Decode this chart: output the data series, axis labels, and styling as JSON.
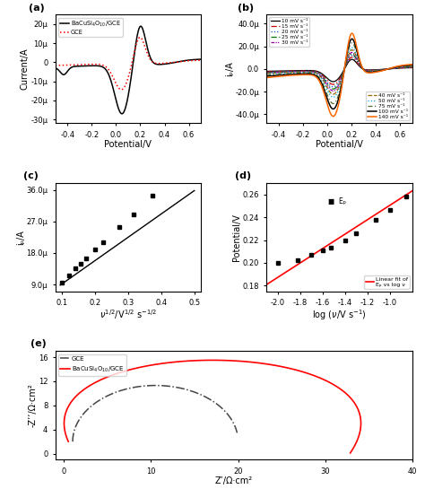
{
  "panel_a": {
    "xlabel": "Potential/V",
    "ylabel": "Current/A",
    "xlim": [
      -0.5,
      0.7
    ],
    "ylim": [
      -3.2e-05,
      2.5e-05
    ],
    "yticks": [
      -3e-05,
      -2e-05,
      -1e-05,
      0,
      1e-05,
      2e-05
    ],
    "ytick_labels": [
      "-30μ",
      "-20μ",
      "-10μ",
      "0",
      "10μ",
      "20μ"
    ],
    "xticks": [
      -0.4,
      -0.2,
      0.0,
      0.2,
      0.4,
      0.6
    ]
  },
  "panel_b": {
    "xlabel": "Potential/V",
    "ylabel": "iₚ/A",
    "xlim": [
      -0.5,
      0.7
    ],
    "ylim": [
      -4.8e-05,
      4.8e-05
    ],
    "yticks": [
      -4e-05,
      -2e-05,
      0,
      2e-05,
      4e-05
    ],
    "ytick_labels": [
      "-40.0μ",
      "-20.0μ",
      "0.0",
      "20.0μ",
      "40.0μ"
    ],
    "xticks": [
      -0.4,
      -0.2,
      0.0,
      0.2,
      0.4,
      0.6
    ]
  },
  "panel_c": {
    "xlabel": "v¹ⁿ²/V¹ⁿ² s⁻¹ⁿ²",
    "ylabel": "iₚ/A",
    "xlim": [
      0.08,
      0.52
    ],
    "ylim": [
      7e-06,
      3.8e-05
    ],
    "xticks": [
      0.1,
      0.2,
      0.3,
      0.4,
      0.5
    ],
    "yticks": [
      9e-06,
      1.8e-05,
      2.7e-05,
      3.6e-05
    ],
    "ytick_labels": [
      "9.0μ",
      "18.0μ",
      "27.0μ",
      "36.0μ"
    ],
    "x_data": [
      0.1,
      0.1225,
      0.1414,
      0.158,
      0.1732,
      0.2,
      0.2236,
      0.2739,
      0.3162,
      0.3742
    ],
    "y_data": [
      9.5e-06,
      1.15e-05,
      1.35e-05,
      1.5e-05,
      1.65e-05,
      1.9e-05,
      2.1e-05,
      2.55e-05,
      2.9e-05,
      3.45e-05
    ],
    "fit_x": [
      0.095,
      0.5
    ],
    "fit_y": [
      8.8e-06,
      3.58e-05
    ]
  },
  "panel_d": {
    "xlabel": "log (ν/V s⁻¹)",
    "ylabel": "Potential/V",
    "xlim": [
      -2.1,
      -0.8
    ],
    "ylim": [
      0.175,
      0.27
    ],
    "xticks": [
      -2.0,
      -1.8,
      -1.6,
      -1.4,
      -1.2,
      -1.0
    ],
    "yticks": [
      0.18,
      0.2,
      0.22,
      0.24,
      0.26
    ],
    "x_data": [
      -2.0,
      -1.824,
      -1.699,
      -1.602,
      -1.523,
      -1.398,
      -1.301,
      -1.125,
      -1.0,
      -0.854
    ],
    "y_data": [
      0.2,
      0.202,
      0.207,
      0.211,
      0.213,
      0.22,
      0.226,
      0.238,
      0.246,
      0.258
    ],
    "fit_x": [
      -2.1,
      -0.8
    ],
    "fit_y": [
      0.181,
      0.263
    ]
  },
  "panel_e": {
    "xlabel": "Z’/Ω·cm²",
    "ylabel": "-Z’’/Ω·cm²",
    "xlim": [
      -1,
      40
    ],
    "ylim": [
      -1,
      17
    ],
    "xticks": [
      0,
      10,
      20,
      30,
      40
    ],
    "yticks": [
      0,
      4,
      8,
      12,
      16
    ],
    "ytick_labels": [
      "0",
      "4",
      "8",
      "12",
      "16"
    ]
  }
}
